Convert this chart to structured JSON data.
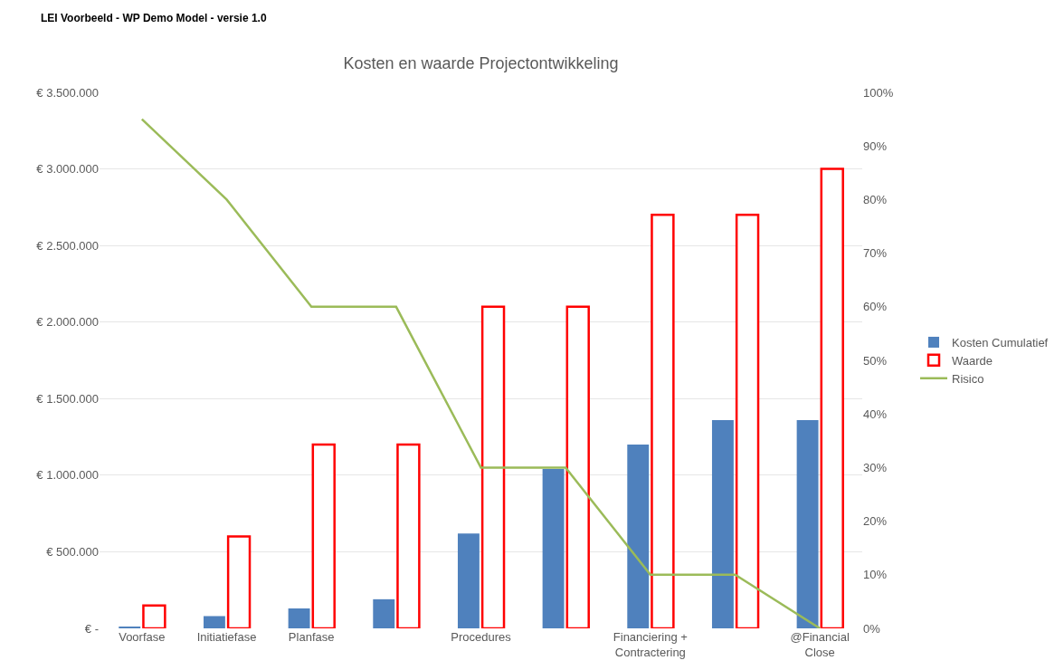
{
  "chart_data": {
    "type": "bar",
    "title": "Kosten en waarde Projectontwikkeling",
    "annotations": [
      "LEI Voorbeeld - WP Demo Model - versie 1.0"
    ],
    "categories": [
      "Voorfase",
      "Initiatiefase",
      "Planfase",
      null,
      "Procedures",
      null,
      "Financiering + Contractering",
      null,
      "@Financial Close"
    ],
    "series": [
      {
        "name": "Kosten Cumulatief",
        "color": "#4f81bd",
        "values": [
          10000,
          80000,
          130000,
          190000,
          620000,
          1040000,
          1200000,
          1360000,
          1360000
        ]
      },
      {
        "name": "Waarde",
        "color": "#ff0000",
        "values": [
          150000,
          600000,
          1200000,
          1200000,
          2100000,
          2100000,
          2700000,
          2700000,
          3000000
        ]
      },
      {
        "name": "Risico",
        "type": "line",
        "axis": "y2",
        "color": "#9bbb59",
        "values": [
          95,
          80,
          60,
          60,
          30,
          30,
          10,
          10,
          0
        ]
      }
    ],
    "ylim": [
      0,
      3500000
    ],
    "yticks": [
      {
        "value": 0,
        "label": "€ -"
      },
      {
        "value": 500000,
        "label": "€ 500.000"
      },
      {
        "value": 1000000,
        "label": "€ 1.000.000"
      },
      {
        "value": 1500000,
        "label": "€ 1.500.000"
      },
      {
        "value": 2000000,
        "label": "€ 2.000.000"
      },
      {
        "value": 2500000,
        "label": "€ 2.500.000"
      },
      {
        "value": 3000000,
        "label": "€ 3.000.000"
      },
      {
        "value": 3500000,
        "label": "€ 3.500.000"
      }
    ],
    "y2lim": [
      0,
      100
    ],
    "y2ticks": [
      {
        "value": 0,
        "label": "0%"
      },
      {
        "value": 10,
        "label": "10%"
      },
      {
        "value": 20,
        "label": "20%"
      },
      {
        "value": 30,
        "label": "30%"
      },
      {
        "value": 40,
        "label": "40%"
      },
      {
        "value": 50,
        "label": "50%"
      },
      {
        "value": 60,
        "label": "60%"
      },
      {
        "value": 70,
        "label": "70%"
      },
      {
        "value": 80,
        "label": "80%"
      },
      {
        "value": 90,
        "label": "90%"
      },
      {
        "value": 100,
        "label": "100%"
      }
    ],
    "grid": "y",
    "legend": "right",
    "marker": "none",
    "line_style": "solid"
  }
}
